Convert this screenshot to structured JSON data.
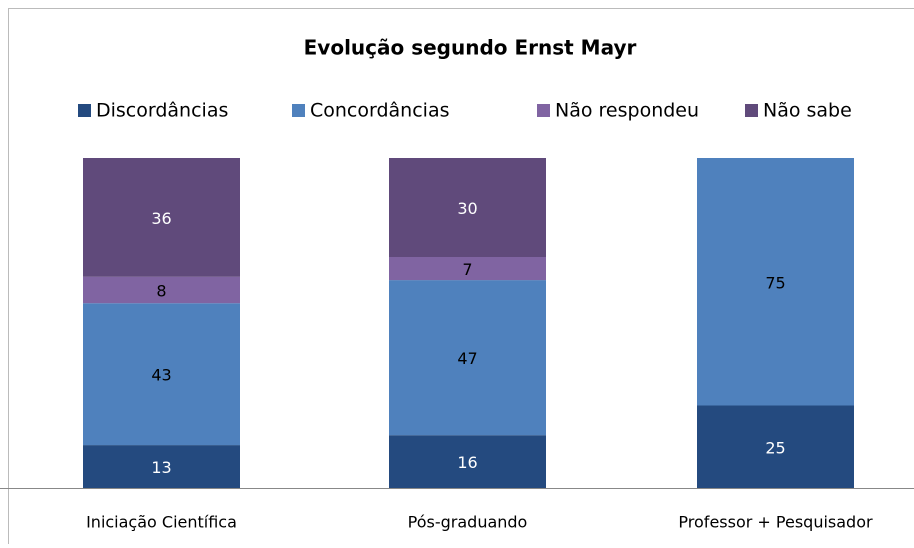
{
  "chart_data": {
    "type": "stacked_bar",
    "title": "Evolução segundo Ernst Mayr",
    "categories": [
      "Iniciação Científica",
      "Pós-graduando",
      "Professor + Pesquisador"
    ],
    "series": [
      {
        "name": "Discordâncias",
        "color": "#244a7f",
        "values": [
          13,
          16,
          25
        ]
      },
      {
        "name": "Concordâncias",
        "color": "#4f81bd",
        "values": [
          43,
          47,
          75
        ]
      },
      {
        "name": "Não respondeu",
        "color": "#8064a2",
        "values": [
          8,
          7,
          null
        ]
      },
      {
        "name": "Não sabe",
        "color": "#604a7b",
        "values": [
          36,
          30,
          null
        ]
      }
    ],
    "ylim": [
      0,
      100
    ],
    "legend": "top"
  }
}
